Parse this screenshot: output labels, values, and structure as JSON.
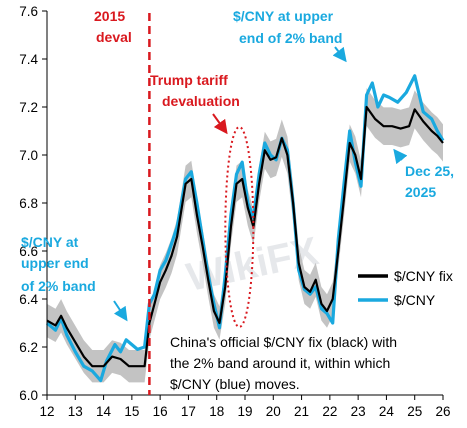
{
  "chart_data": {
    "type": "line",
    "title": "",
    "xlabel": "",
    "ylabel": "",
    "xlim": [
      12,
      26
    ],
    "ylim": [
      6.0,
      7.6
    ],
    "x_ticks": [
      "12",
      "13",
      "14",
      "15",
      "16",
      "17",
      "18",
      "19",
      "20",
      "21",
      "22",
      "23",
      "24",
      "25",
      "26"
    ],
    "y_ticks": [
      "6.0",
      "6.2",
      "6.4",
      "6.6",
      "6.8",
      "7.0",
      "7.2",
      "7.4",
      "7.6"
    ],
    "legend_position": "right-middle",
    "band_half_width_pct": 2,
    "series": [
      {
        "name": "$/CNY fix",
        "color": "#000000",
        "points": [
          [
            12.0,
            6.31
          ],
          [
            12.3,
            6.29
          ],
          [
            12.5,
            6.33
          ],
          [
            12.7,
            6.28
          ],
          [
            13.0,
            6.22
          ],
          [
            13.3,
            6.16
          ],
          [
            13.6,
            6.12
          ],
          [
            14.0,
            6.12
          ],
          [
            14.3,
            6.16
          ],
          [
            14.6,
            6.15
          ],
          [
            14.9,
            6.12
          ],
          [
            15.2,
            6.12
          ],
          [
            15.45,
            6.12
          ],
          [
            15.62,
            6.3
          ],
          [
            15.8,
            6.38
          ],
          [
            16.0,
            6.47
          ],
          [
            16.2,
            6.52
          ],
          [
            16.4,
            6.58
          ],
          [
            16.6,
            6.66
          ],
          [
            16.9,
            6.88
          ],
          [
            17.1,
            6.9
          ],
          [
            17.3,
            6.75
          ],
          [
            17.5,
            6.62
          ],
          [
            17.7,
            6.48
          ],
          [
            17.9,
            6.35
          ],
          [
            18.1,
            6.3
          ],
          [
            18.3,
            6.45
          ],
          [
            18.5,
            6.7
          ],
          [
            18.7,
            6.88
          ],
          [
            18.9,
            6.9
          ],
          [
            19.1,
            6.78
          ],
          [
            19.3,
            6.7
          ],
          [
            19.5,
            6.88
          ],
          [
            19.7,
            7.02
          ],
          [
            19.9,
            6.98
          ],
          [
            20.1,
            6.99
          ],
          [
            20.3,
            7.07
          ],
          [
            20.5,
            7.0
          ],
          [
            20.7,
            6.8
          ],
          [
            20.9,
            6.55
          ],
          [
            21.1,
            6.45
          ],
          [
            21.3,
            6.43
          ],
          [
            21.5,
            6.48
          ],
          [
            21.7,
            6.38
          ],
          [
            21.9,
            6.35
          ],
          [
            22.1,
            6.4
          ],
          [
            22.3,
            6.6
          ],
          [
            22.5,
            6.82
          ],
          [
            22.7,
            7.05
          ],
          [
            22.9,
            7.0
          ],
          [
            23.1,
            6.9
          ],
          [
            23.3,
            7.2
          ],
          [
            23.6,
            7.15
          ],
          [
            23.9,
            7.12
          ],
          [
            24.2,
            7.12
          ],
          [
            24.5,
            7.11
          ],
          [
            24.8,
            7.12
          ],
          [
            25.0,
            7.19
          ],
          [
            25.3,
            7.14
          ],
          [
            25.6,
            7.1
          ],
          [
            25.8,
            7.08
          ],
          [
            26.0,
            7.05
          ]
        ]
      },
      {
        "name": "$/CNY",
        "color": "#1aa9df",
        "points": [
          [
            12.0,
            6.3
          ],
          [
            12.3,
            6.27
          ],
          [
            12.5,
            6.32
          ],
          [
            12.7,
            6.25
          ],
          [
            13.0,
            6.18
          ],
          [
            13.3,
            6.12
          ],
          [
            13.6,
            6.1
          ],
          [
            13.9,
            6.06
          ],
          [
            14.1,
            6.14
          ],
          [
            14.4,
            6.21
          ],
          [
            14.6,
            6.18
          ],
          [
            14.8,
            6.23
          ],
          [
            15.0,
            6.21
          ],
          [
            15.2,
            6.19
          ],
          [
            15.45,
            6.2
          ],
          [
            15.62,
            6.38
          ],
          [
            15.8,
            6.42
          ],
          [
            16.0,
            6.52
          ],
          [
            16.2,
            6.56
          ],
          [
            16.4,
            6.63
          ],
          [
            16.6,
            6.7
          ],
          [
            16.9,
            6.9
          ],
          [
            17.1,
            6.93
          ],
          [
            17.3,
            6.8
          ],
          [
            17.5,
            6.65
          ],
          [
            17.7,
            6.5
          ],
          [
            17.9,
            6.38
          ],
          [
            18.1,
            6.28
          ],
          [
            18.3,
            6.5
          ],
          [
            18.5,
            6.75
          ],
          [
            18.7,
            6.92
          ],
          [
            18.9,
            6.97
          ],
          [
            19.1,
            6.8
          ],
          [
            19.3,
            6.74
          ],
          [
            19.5,
            6.92
          ],
          [
            19.7,
            7.05
          ],
          [
            19.9,
            7.0
          ],
          [
            20.1,
            6.98
          ],
          [
            20.3,
            7.07
          ],
          [
            20.5,
            7.02
          ],
          [
            20.7,
            6.8
          ],
          [
            20.9,
            6.52
          ],
          [
            21.1,
            6.44
          ],
          [
            21.3,
            6.42
          ],
          [
            21.5,
            6.45
          ],
          [
            21.7,
            6.36
          ],
          [
            21.9,
            6.34
          ],
          [
            22.1,
            6.3
          ],
          [
            22.3,
            6.65
          ],
          [
            22.5,
            6.88
          ],
          [
            22.7,
            7.1
          ],
          [
            22.9,
            6.97
          ],
          [
            23.1,
            6.87
          ],
          [
            23.3,
            7.25
          ],
          [
            23.5,
            7.3
          ],
          [
            23.7,
            7.2
          ],
          [
            23.9,
            7.25
          ],
          [
            24.1,
            7.24
          ],
          [
            24.4,
            7.22
          ],
          [
            24.7,
            7.26
          ],
          [
            25.0,
            7.33
          ],
          [
            25.3,
            7.18
          ],
          [
            25.6,
            7.15
          ],
          [
            25.8,
            7.1
          ],
          [
            26.0,
            7.06
          ]
        ]
      }
    ],
    "markers": {
      "vline_x": 15.62,
      "vline_color": "#d9191f",
      "ellipse_center": [
        18.8,
        6.7
      ],
      "ellipse_color": "#d9191f"
    },
    "annotations": {
      "deval": [
        "2015",
        "deval"
      ],
      "trump": [
        "Trump tariff",
        "devaluation"
      ],
      "upper_top": [
        "$/CNY at upper",
        "end of 2% band"
      ],
      "upper_left": [
        "$/CNY at",
        "upper end",
        "of 2% band"
      ],
      "date": [
        "Dec 25,",
        "2025"
      ],
      "note": [
        "China's official $/CNY fix (black) with",
        "the 2% band around it, within which",
        "$/CNY (blue) moves."
      ],
      "watermark": "WikiFX"
    }
  }
}
